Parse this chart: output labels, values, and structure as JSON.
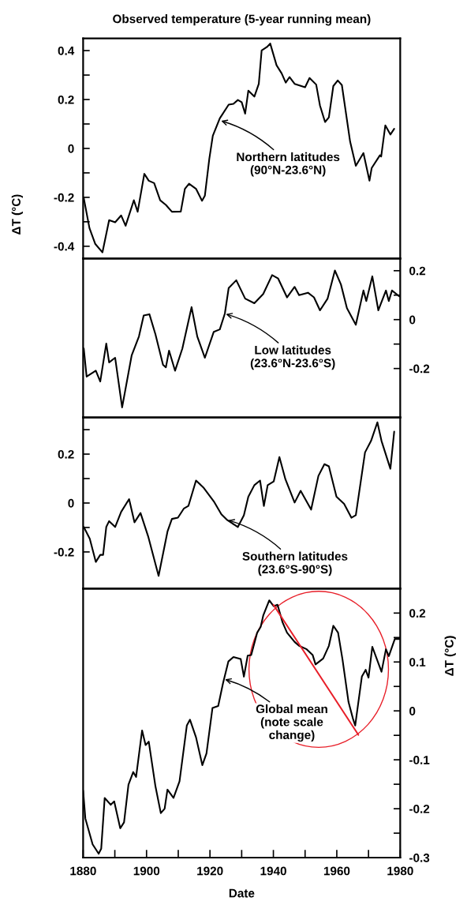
{
  "chart_data": [
    {
      "type": "line",
      "title": "Observed temperature (5-year running mean)",
      "ylabel": "ΔT (°C)",
      "xlim": [
        1880,
        1980
      ],
      "ylim": [
        -0.45,
        0.45
      ],
      "yticks": [
        0.4,
        {
          "value": 0.3,
          "label": null
        },
        0.2,
        {
          "value": 0.1,
          "label": null
        },
        0,
        {
          "value": -0.1,
          "label": null
        },
        -0.2,
        {
          "value": -0.3,
          "label": null
        },
        -0.4
      ],
      "tick_labels": "y",
      "annotations": [
        {
          "text": "Northern latitudes\n(90°N-23.6°N)",
          "x": 1923.2,
          "y": 0.114
        }
      ],
      "series": [
        {
          "color": "#000000",
          "x": [
            1880.2,
            1882,
            1883.8,
            1886.1,
            1888.2,
            1890.1,
            1892,
            1893.4,
            1896,
            1897.2,
            1899.3,
            1900.7,
            1902.4,
            1904.3,
            1906.1,
            1908,
            1910.8,
            1912.1,
            1913.4,
            1915.6,
            1917.5,
            1918.4,
            1919.8,
            1920.9,
            1923.1,
            1925.9,
            1927.4,
            1928.8,
            1930,
            1931.1,
            1932.1,
            1934,
            1935.4,
            1936.3,
            1938,
            1939,
            1941,
            1942.6,
            1943.9,
            1945.1,
            1946.7,
            1950,
            1951.4,
            1953.5,
            1954.7,
            1956.3,
            1957.5,
            1958.9,
            1960.3,
            1961.6,
            1964.2,
            1966,
            1968.4,
            1970.3,
            1971,
            1973.6,
            1974,
            1975.3,
            1976.9,
            1978.1
          ],
          "values": [
            -0.203,
            -0.326,
            -0.39,
            -0.425,
            -0.293,
            -0.302,
            -0.274,
            -0.316,
            -0.212,
            -0.259,
            -0.104,
            -0.132,
            -0.142,
            -0.212,
            -0.231,
            -0.259,
            -0.258,
            -0.165,
            -0.144,
            -0.165,
            -0.214,
            -0.193,
            -0.042,
            0.052,
            0.123,
            0.179,
            0.182,
            0.198,
            0.189,
            0.142,
            0.236,
            0.212,
            0.264,
            0.401,
            0.415,
            0.429,
            0.34,
            0.307,
            0.269,
            0.292,
            0.264,
            0.25,
            0.288,
            0.261,
            0.175,
            0.108,
            0.127,
            0.255,
            0.278,
            0.259,
            0.028,
            -0.071,
            -0.019,
            -0.132,
            -0.08,
            -0.028,
            -0.033,
            0.094,
            0.057,
            0.08
          ]
        }
      ]
    },
    {
      "type": "line",
      "xlim": [
        1880,
        1980
      ],
      "ylim": [
        -0.4,
        0.25
      ],
      "yticks": [
        0.2,
        {
          "value": 0.1,
          "label": null
        },
        0,
        {
          "value": -0.1,
          "label": null
        },
        -0.2
      ],
      "tick_labels": "y",
      "annotations": [
        {
          "text": "Low latitudes\n(23.6°N-23.6°S)",
          "x": 1924.7,
          "y": 0.024
        }
      ],
      "series": [
        {
          "color": "#000000",
          "x": [
            1880.2,
            1881.1,
            1884,
            1885.4,
            1887.3,
            1888.2,
            1890.1,
            1892.3,
            1895.3,
            1897.6,
            1899.1,
            1900.9,
            1902.8,
            1905.2,
            1906.1,
            1907.1,
            1909,
            1911.3,
            1914.2,
            1916,
            1918.4,
            1921.2,
            1923.1,
            1924.7,
            1925.9,
            1928.3,
            1931.1,
            1934,
            1936.8,
            1939.6,
            1941.5,
            1944.3,
            1946.7,
            1948.1,
            1950.9,
            1952.8,
            1954.7,
            1957.1,
            1959.4,
            1961.3,
            1963.2,
            1966,
            1968.4,
            1969.3,
            1971.2,
            1973.1,
            1975.5,
            1976.4,
            1977.4,
            1979.7
          ],
          "values": [
            -0.118,
            -0.233,
            -0.209,
            -0.253,
            -0.098,
            -0.175,
            -0.156,
            -0.359,
            -0.147,
            -0.069,
            0.017,
            0.022,
            -0.06,
            -0.185,
            -0.195,
            -0.127,
            -0.209,
            -0.118,
            0.051,
            -0.069,
            -0.156,
            -0.05,
            -0.04,
            0.025,
            0.129,
            0.161,
            0.086,
            0.067,
            0.105,
            0.182,
            0.168,
            0.091,
            0.134,
            0.1,
            0.11,
            0.091,
            0.038,
            0.086,
            0.201,
            0.144,
            0.047,
            -0.021,
            0.119,
            0.076,
            0.177,
            0.038,
            0.119,
            0.076,
            0.119,
            0.095
          ]
        }
      ]
    },
    {
      "type": "line",
      "xlim": [
        1880,
        1980
      ],
      "ylim": [
        -0.35,
        0.35
      ],
      "yticks": [
        {
          "value": 0.3,
          "label": null
        },
        0.2,
        {
          "value": 0.1,
          "label": null
        },
        0,
        {
          "value": -0.1,
          "label": null
        },
        -0.2
      ],
      "tick_labels": "y",
      "annotations": [
        {
          "text": "Southern latitudes\n(23.6°S-90°S)",
          "x": 1925.4,
          "y": -0.069
        }
      ],
      "series": [
        {
          "color": "#000000",
          "x": [
            1880.2,
            1882.1,
            1884,
            1885.4,
            1886.3,
            1887.3,
            1888.2,
            1890.1,
            1892,
            1894.5,
            1896.2,
            1898.1,
            1900.5,
            1903.8,
            1906.6,
            1908,
            1909.9,
            1911.8,
            1913.2,
            1915.6,
            1917.9,
            1921.2,
            1923.6,
            1925.5,
            1928.8,
            1930.7,
            1932.1,
            1934,
            1935.8,
            1937,
            1938.2,
            1940.1,
            1941.9,
            1943.8,
            1946.7,
            1948.6,
            1951.9,
            1954.2,
            1956.1,
            1957.5,
            1959.9,
            1962.3,
            1964.6,
            1966,
            1968.9,
            1970.8,
            1972.8,
            1974.1,
            1976.9,
            1978.1
          ],
          "values": [
            -0.098,
            -0.146,
            -0.241,
            -0.212,
            -0.212,
            -0.098,
            -0.074,
            -0.098,
            -0.036,
            0.016,
            -0.079,
            -0.041,
            -0.136,
            -0.298,
            -0.117,
            -0.065,
            -0.06,
            -0.022,
            -0.012,
            0.092,
            0.064,
            0.007,
            -0.046,
            -0.07,
            -0.098,
            -0.05,
            0.026,
            0.073,
            0.092,
            -0.012,
            0.073,
            0.088,
            0.188,
            0.097,
            0.002,
            0.05,
            -0.027,
            0.111,
            0.159,
            0.15,
            0.026,
            -0.003,
            -0.06,
            -0.05,
            0.207,
            0.254,
            0.33,
            0.254,
            0.14,
            0.292
          ]
        }
      ]
    },
    {
      "type": "line",
      "xlabel": "Date",
      "ylabel": "ΔT (°C)",
      "xlim": [
        1880,
        1980
      ],
      "xticks": [
        1880,
        {
          "value": 1890,
          "label": null
        },
        1900,
        {
          "value": 1910,
          "label": null
        },
        1920,
        {
          "value": 1930,
          "label": null
        },
        1940,
        {
          "value": 1950,
          "label": null
        },
        1960,
        {
          "value": 1970,
          "label": null
        },
        1980
      ],
      "ylim": [
        -0.3,
        0.25
      ],
      "yticks": [
        0.2,
        {
          "value": 0.15,
          "label": null
        },
        0.1,
        {
          "value": 0.05,
          "label": null
        },
        0,
        {
          "value": -0.05,
          "label": null
        },
        -0.1,
        {
          "value": -0.15,
          "label": null
        },
        -0.2,
        {
          "value": -0.25,
          "label": null
        },
        -0.3
      ],
      "annotations": [
        {
          "text": "Global mean\n(note scale\nchange)",
          "x": 1924.4,
          "y": 0.065
        }
      ],
      "series": [
        {
          "color": "#000000",
          "x": [
            1880,
            1880.7,
            1883,
            1884.9,
            1885.7,
            1886.8,
            1888.7,
            1889.8,
            1891.7,
            1892.9,
            1894.3,
            1895.8,
            1896.7,
            1898.6,
            1899.7,
            1900.7,
            1902.8,
            1904.5,
            1905.7,
            1906.6,
            1908.5,
            1910.4,
            1912.7,
            1913.7,
            1915.6,
            1917.6,
            1918.9,
            1920.8,
            1922.6,
            1924.1,
            1925.8,
            1927.4,
            1929.7,
            1930.7,
            1931.9,
            1933,
            1934.9,
            1936,
            1936.8,
            1938.7,
            1940.1,
            1941.3,
            1942.9,
            1944.3,
            1946.7,
            1948.1,
            1950.5,
            1952.4,
            1953.3,
            1955.7,
            1957.5,
            1958.9,
            1960.4,
            1961.8,
            1963.7,
            1965.1,
            1965.8,
            1967.9,
            1969.1,
            1970,
            1971.2,
            1974.1,
            1975.5,
            1976.4,
            1978.3,
            1979.7
          ],
          "values": [
            -0.163,
            -0.22,
            -0.273,
            -0.292,
            -0.282,
            -0.178,
            -0.192,
            -0.185,
            -0.24,
            -0.228,
            -0.151,
            -0.125,
            -0.135,
            -0.04,
            -0.07,
            -0.063,
            -0.154,
            -0.209,
            -0.2,
            -0.161,
            -0.178,
            -0.144,
            -0.03,
            -0.018,
            -0.054,
            -0.111,
            -0.087,
            0.006,
            0.01,
            0.056,
            0.101,
            0.11,
            0.106,
            0.07,
            0.113,
            0.114,
            0.16,
            0.172,
            0.195,
            0.226,
            0.214,
            0.217,
            0.181,
            0.16,
            0.141,
            0.133,
            0.126,
            0.114,
            0.095,
            0.107,
            0.133,
            0.174,
            0.16,
            0.105,
            0.018,
            -0.016,
            -0.03,
            0.07,
            0.084,
            0.068,
            0.131,
            0.08,
            0.126,
            0.112,
            0.147,
            0.147
          ]
        },
        {
          "color": "#e8202a",
          "x": [
            1940.0,
            1966.8
          ],
          "values": [
            0.217,
            -0.049
          ]
        }
      ]
    }
  ]
}
